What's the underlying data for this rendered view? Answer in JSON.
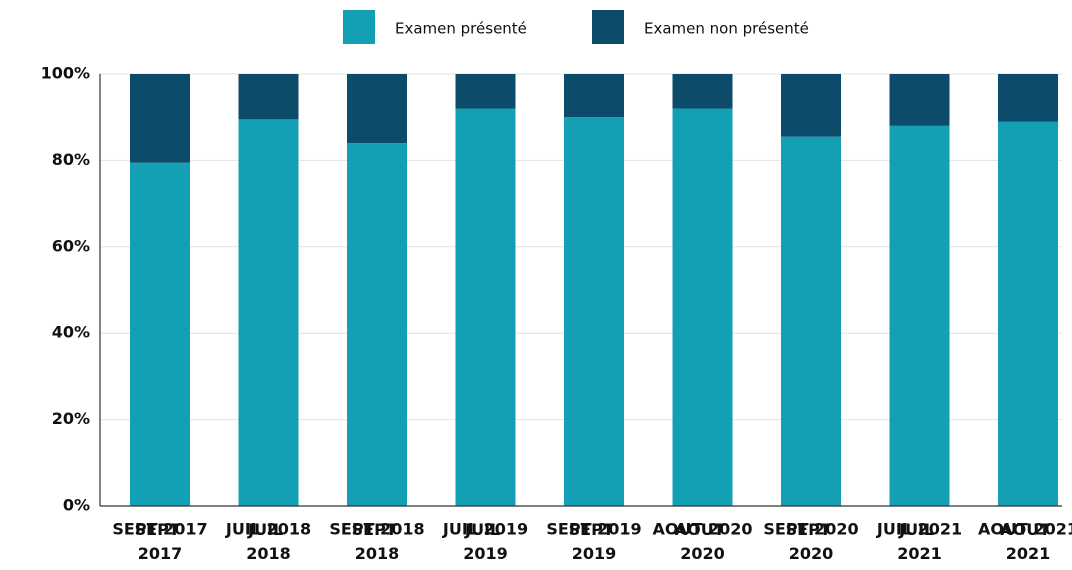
{
  "chart_data": {
    "type": "stacked_bar",
    "categories": [
      "SEPT 2017",
      "JUIL 2018",
      "SEPT 2018",
      "JUIL 2019",
      "SEPT 2019",
      "AOUT 2020",
      "SEPT 2020",
      "JUIL 2021",
      "AOUT 2021"
    ],
    "series": [
      {
        "name": "Examen présenté",
        "color": "#14a0b4",
        "values": [
          79.5,
          89.5,
          84,
          92,
          90,
          92,
          85.5,
          88,
          89
        ]
      },
      {
        "name": "Examen non présenté",
        "color": "#0c4b69",
        "values": [
          20.5,
          10.5,
          16,
          8,
          10,
          8,
          14.5,
          12,
          11
        ]
      }
    ],
    "ylim": [
      0,
      100
    ],
    "yticks": [
      {
        "value": 0,
        "label": "0%"
      },
      {
        "value": 20,
        "label": "20%"
      },
      {
        "value": 40,
        "label": "40%"
      },
      {
        "value": 60,
        "label": "60%"
      },
      {
        "value": 80,
        "label": "80%"
      },
      {
        "value": 100,
        "label": "100%"
      }
    ],
    "grid": true,
    "legend": "top"
  }
}
